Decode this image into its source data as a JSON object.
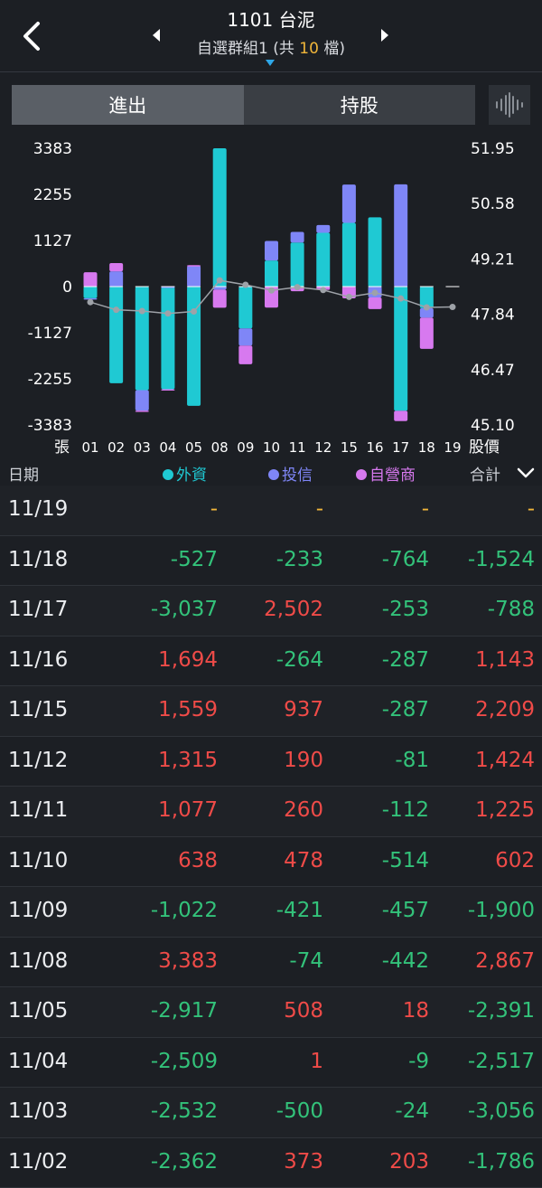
{
  "header": {
    "title": "1101 台泥",
    "group_prefix": "自選群組1 (共 ",
    "group_count": "10",
    "group_suffix": " 檔)"
  },
  "tabs": [
    {
      "label": "進出",
      "active": true
    },
    {
      "label": "持股",
      "active": false
    }
  ],
  "colors": {
    "foreign": "#1fc9d3",
    "trust": "#7f86f7",
    "dealer": "#d779ef",
    "positive": "#ef4b48",
    "negative": "#33c27a",
    "price_line": "#9ea2a8"
  },
  "chart_data": {
    "type": "bar",
    "stacked": true,
    "categories": [
      "01",
      "02",
      "03",
      "04",
      "05",
      "08",
      "09",
      "10",
      "11",
      "12",
      "15",
      "16",
      "17",
      "18",
      "19"
    ],
    "series": [
      {
        "name": "外資",
        "values": [
          -286,
          -2362,
          -2532,
          -2509,
          -2917,
          3383,
          -1022,
          638,
          1077,
          1315,
          1559,
          1694,
          -3037,
          -527,
          0
        ]
      },
      {
        "name": "投信",
        "values": [
          -20,
          373,
          -500,
          1,
          508,
          -74,
          -421,
          478,
          260,
          190,
          937,
          -264,
          2502,
          -233,
          0
        ]
      },
      {
        "name": "自營商",
        "values": [
          350,
          203,
          -24,
          -9,
          18,
          -442,
          -457,
          -514,
          -112,
          -81,
          -287,
          -287,
          -253,
          -764,
          0
        ]
      }
    ],
    "price": [
      48.14,
      47.95,
      47.92,
      47.86,
      47.91,
      48.68,
      48.57,
      48.43,
      48.51,
      48.44,
      48.27,
      48.37,
      48.23,
      48.01,
      48.02
    ],
    "left_axis": {
      "label": "張",
      "ticks": [
        "3383",
        "2255",
        "1127",
        "0",
        "-1127",
        "-2255",
        "-3383"
      ],
      "range": [
        -3383,
        3383
      ]
    },
    "right_axis": {
      "label": "股價",
      "ticks": [
        "51.95",
        "50.58",
        "49.21",
        "47.84",
        "46.47",
        "45.10"
      ],
      "range": [
        45.1,
        51.95
      ]
    }
  },
  "table": {
    "headers": {
      "date": "日期",
      "foreign": "外資",
      "trust": "投信",
      "dealer": "自營商",
      "total": "合計"
    },
    "rows": [
      {
        "date": "11/19",
        "v": [
          "-",
          "-",
          "-",
          "-"
        ]
      },
      {
        "date": "11/18",
        "v": [
          "-527",
          "-233",
          "-764",
          "-1,524"
        ]
      },
      {
        "date": "11/17",
        "v": [
          "-3,037",
          "2,502",
          "-253",
          "-788"
        ]
      },
      {
        "date": "11/16",
        "v": [
          "1,694",
          "-264",
          "-287",
          "1,143"
        ]
      },
      {
        "date": "11/15",
        "v": [
          "1,559",
          "937",
          "-287",
          "2,209"
        ]
      },
      {
        "date": "11/12",
        "v": [
          "1,315",
          "190",
          "-81",
          "1,424"
        ]
      },
      {
        "date": "11/11",
        "v": [
          "1,077",
          "260",
          "-112",
          "1,225"
        ]
      },
      {
        "date": "11/10",
        "v": [
          "638",
          "478",
          "-514",
          "602"
        ]
      },
      {
        "date": "11/09",
        "v": [
          "-1,022",
          "-421",
          "-457",
          "-1,900"
        ]
      },
      {
        "date": "11/08",
        "v": [
          "3,383",
          "-74",
          "-442",
          "2,867"
        ]
      },
      {
        "date": "11/05",
        "v": [
          "-2,917",
          "508",
          "18",
          "-2,391"
        ]
      },
      {
        "date": "11/04",
        "v": [
          "-2,509",
          "1",
          "-9",
          "-2,517"
        ]
      },
      {
        "date": "11/03",
        "v": [
          "-2,532",
          "-500",
          "-24",
          "-3,056"
        ]
      },
      {
        "date": "11/02",
        "v": [
          "-2,362",
          "373",
          "203",
          "-1,786"
        ]
      }
    ]
  }
}
